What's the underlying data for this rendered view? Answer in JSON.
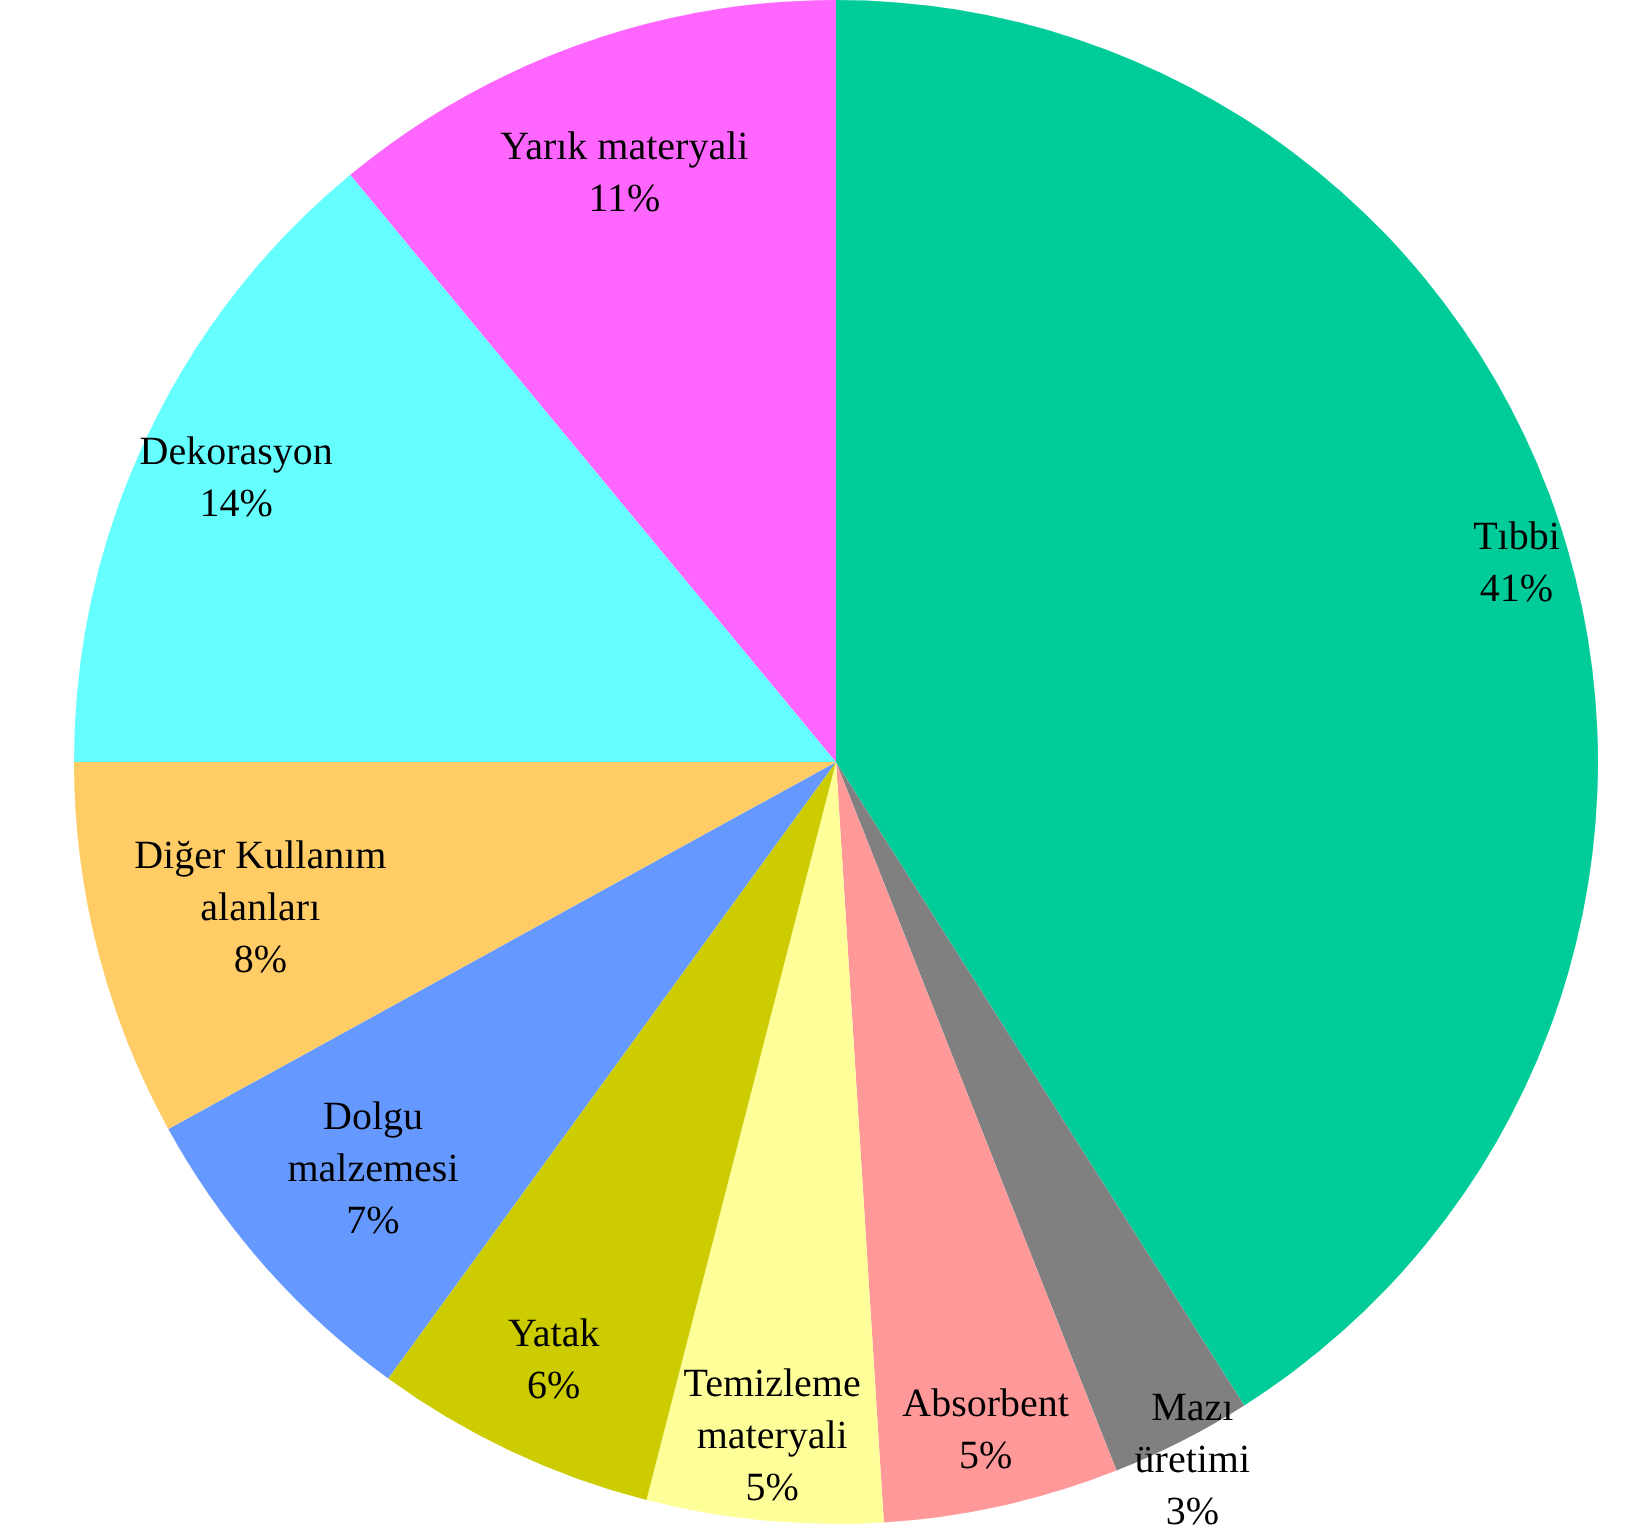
{
  "chart_data": {
    "type": "pie",
    "categories": [
      "Tıbbi",
      "Mazı üretimi",
      "Absorbent",
      "Temizleme materyali",
      "Yatak",
      "Dolgu malzemesi",
      "Diğer Kullanım alanları",
      "Dekorasyon",
      "Yarık materyali"
    ],
    "values": [
      41,
      3,
      5,
      5,
      6,
      7,
      8,
      14,
      11
    ],
    "value_labels": [
      "41%",
      "3%",
      "5%",
      "5%",
      "6%",
      "7%",
      "8%",
      "14%",
      "11%"
    ],
    "colors": [
      "#00cc99",
      "#808080",
      "#ff9999",
      "#ffff99",
      "#cccc00",
      "#6699ff",
      "#ffcc66",
      "#66ffff",
      "#ff66ff"
    ],
    "legend": false
  }
}
